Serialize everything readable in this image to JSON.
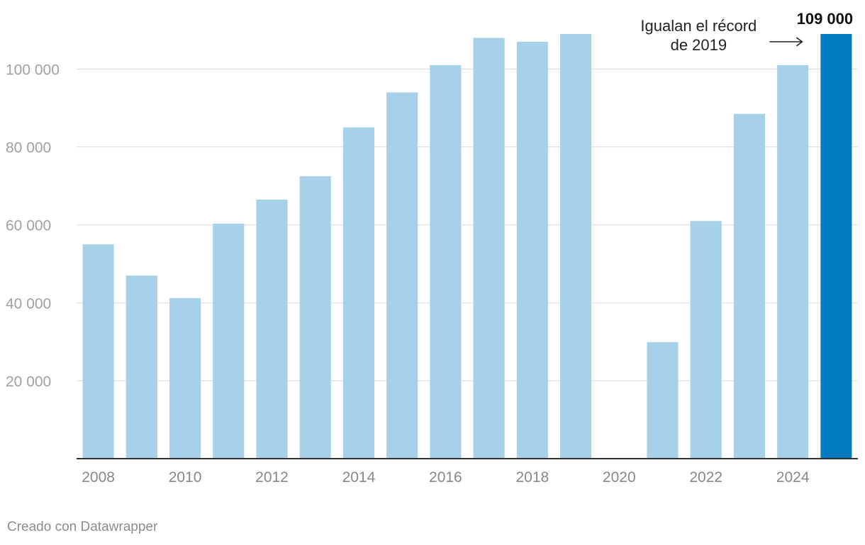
{
  "chart_data": {
    "type": "bar",
    "title": "",
    "xlabel": "",
    "ylabel": "",
    "ylim": [
      0,
      109000
    ],
    "grid": true,
    "categories": [
      "2008",
      "2009",
      "2010",
      "2011",
      "2012",
      "2013",
      "2014",
      "2015",
      "2016",
      "2017",
      "2018",
      "2019",
      "2020",
      "2021",
      "2022",
      "2023",
      "2024",
      "2025"
    ],
    "values": [
      55000,
      47000,
      41200,
      60300,
      66500,
      72500,
      85000,
      94000,
      101000,
      108000,
      107000,
      109000,
      0,
      29900,
      61000,
      88500,
      101000,
      109000
    ],
    "highlight_index": 17,
    "colors": {
      "bar": "#a6d1e8",
      "highlight": "#007bbd"
    },
    "y_ticks": [
      {
        "value": 20000,
        "label": "20 000"
      },
      {
        "value": 40000,
        "label": "40 000"
      },
      {
        "value": 60000,
        "label": "60 000"
      },
      {
        "value": 80000,
        "label": "80 000"
      },
      {
        "value": 100000,
        "label": "100 000"
      }
    ],
    "x_tick_labels": [
      "2008",
      "2010",
      "2012",
      "2014",
      "2016",
      "2018",
      "2020",
      "2022",
      "2024"
    ],
    "value_label": "109 000",
    "annotation": {
      "lines": [
        "Igualan el récord",
        "de 2019"
      ],
      "target_category": "2025"
    }
  },
  "credit": "Creado con Datawrapper"
}
